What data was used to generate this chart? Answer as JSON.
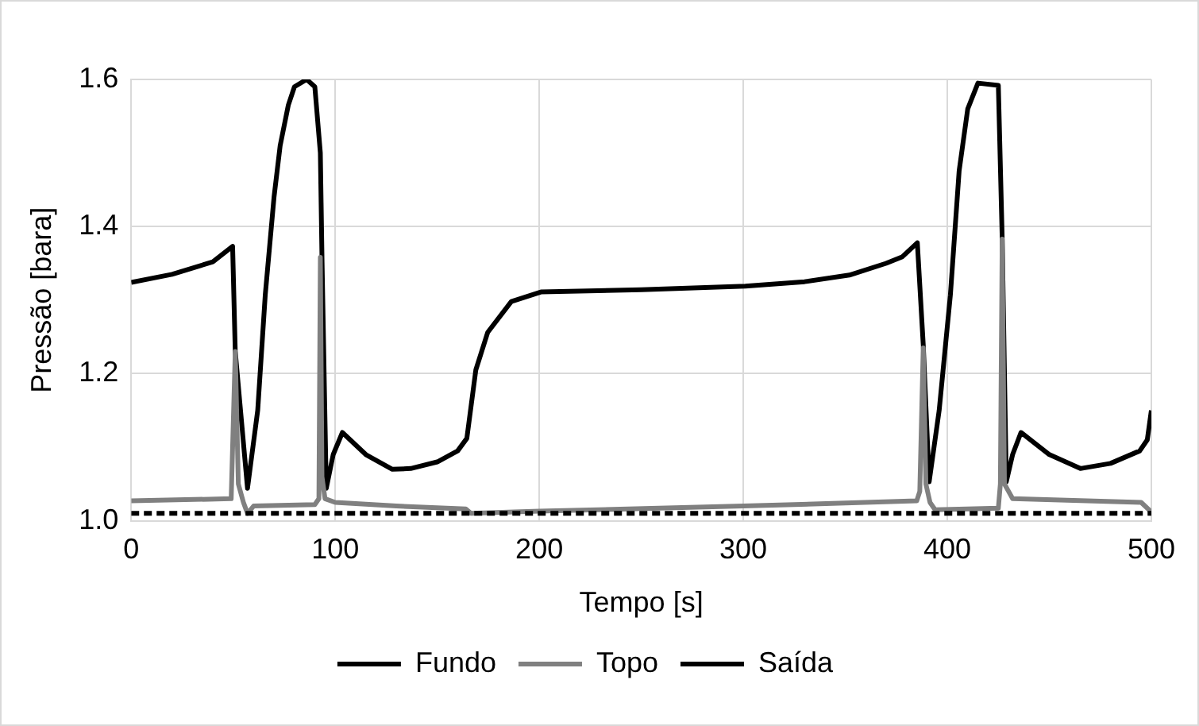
{
  "chart_data": {
    "type": "line",
    "xlabel": "Tempo [s]",
    "ylabel": "Pressão [bara]",
    "xlim": [
      0,
      500
    ],
    "xticks": [
      0,
      100,
      200,
      300,
      400,
      500
    ],
    "ylim": [
      1.0,
      1.6
    ],
    "yticks": [
      {
        "value": 1.0,
        "label": "1.0"
      },
      {
        "value": 1.2,
        "label": "1.2"
      },
      {
        "value": 1.4,
        "label": "1.4"
      },
      {
        "value": 1.6,
        "label": "1.6"
      }
    ],
    "grid": true,
    "legend": "bottom",
    "marker": "none",
    "series": [
      {
        "name": "Fundo",
        "color": "#000000",
        "line_style": "solid",
        "x": [
          0,
          20,
          40,
          49.7,
          51,
          57,
          62,
          65.7,
          70,
          73,
          77,
          80,
          86,
          90,
          92.7,
          93.5,
          95.6,
          99,
          103.5,
          115,
          128,
          137,
          150,
          160,
          164.5,
          168.9,
          174.7,
          186.3,
          200.8,
          250,
          301,
          330,
          352,
          370,
          378,
          385.3,
          388.2,
          391.1,
          396,
          401.5,
          405.8,
          410,
          415,
          425,
          426.9,
          428.9,
          432,
          436.1,
          450,
          465.2,
          480,
          494.3,
          498,
          500
        ],
        "values": [
          1.324,
          1.335,
          1.352,
          1.373,
          1.23,
          1.044,
          1.15,
          1.307,
          1.44,
          1.51,
          1.565,
          1.59,
          1.6,
          1.59,
          1.5,
          1.358,
          1.044,
          1.09,
          1.12,
          1.09,
          1.07,
          1.071,
          1.08,
          1.095,
          1.112,
          1.205,
          1.256,
          1.298,
          1.311,
          1.314,
          1.319,
          1.325,
          1.334,
          1.35,
          1.359,
          1.378,
          1.239,
          1.053,
          1.15,
          1.307,
          1.476,
          1.56,
          1.595,
          1.592,
          1.383,
          1.053,
          1.09,
          1.12,
          1.09,
          1.071,
          1.078,
          1.095,
          1.11,
          1.15
        ]
      },
      {
        "name": "Topo",
        "color": "#808080",
        "line_style": "solid",
        "x": [
          0,
          49,
          51,
          52.5,
          55,
          57,
          60,
          90,
          92,
          92.7,
          93.5,
          95,
          100,
          130,
          164,
          166.5,
          200,
          300,
          385,
          386.5,
          388.2,
          389.5,
          391.5,
          394,
          425,
          426,
          426.9,
          428,
          432,
          495,
          500
        ],
        "values": [
          1.027,
          1.03,
          1.23,
          1.05,
          1.025,
          1.01,
          1.02,
          1.022,
          1.03,
          1.358,
          1.06,
          1.03,
          1.025,
          1.02,
          1.016,
          1.01,
          1.013,
          1.02,
          1.027,
          1.04,
          1.235,
          1.05,
          1.025,
          1.015,
          1.017,
          1.05,
          1.383,
          1.05,
          1.03,
          1.025,
          1.012
        ]
      },
      {
        "name": "Saída",
        "color": "#000000",
        "line_style": "dashed",
        "x": [
          0,
          500
        ],
        "values": [
          1.01,
          1.01
        ]
      }
    ]
  }
}
